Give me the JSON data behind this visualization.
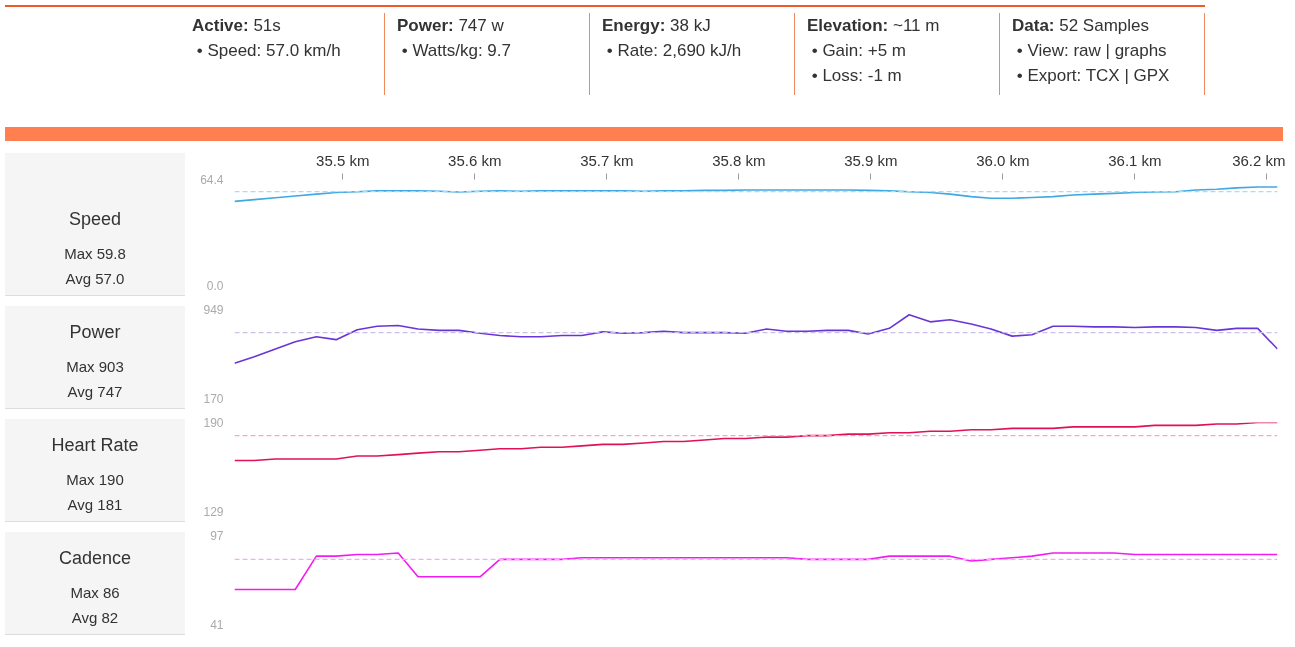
{
  "chart_data": [
    {
      "type": "other",
      "annotations": [
        "Active: 51s",
        "• Speed: 57.0 km/h",
        "Power: 747 w",
        "• Watts/kg: 9.7",
        "Energy: 38 kJ",
        "• Rate: 2,690 kJ/h",
        "Elevation: ~11 m",
        "• Gain: +5 m",
        "• Loss: -1 m",
        "Data: 52 Samples",
        "• View: raw | graphs",
        "• Export: TCX | GPX"
      ]
    },
    {
      "type": "line",
      "title": "Speed",
      "annotations": [
        "Max 59.8",
        "Avg 57.0"
      ],
      "xlim": [
        35.418,
        36.208
      ],
      "ylim": [
        0,
        64.4
      ],
      "yticks": [
        {
          "value": 0,
          "label": "0.0"
        },
        {
          "value": 64.4,
          "label": "64.4"
        }
      ],
      "xticks": [
        {
          "value": 35.5,
          "label": "35.5 km"
        },
        {
          "value": 35.6,
          "label": "35.6 km"
        },
        {
          "value": 35.7,
          "label": "35.7 km"
        },
        {
          "value": 35.8,
          "label": "35.8 km"
        },
        {
          "value": 35.9,
          "label": "35.9 km"
        },
        {
          "value": 36.0,
          "label": "36.0 km"
        },
        {
          "value": 36.1,
          "label": "36.1 km"
        },
        {
          "value": 36.2,
          "label": "36.2 km"
        }
      ],
      "ref_lines": [
        {
          "axis": "y",
          "value": 57.0,
          "color": "#a9dcf5",
          "line_style": "dashed"
        }
      ],
      "x": [
        35.418,
        35.433,
        35.449,
        35.464,
        35.48,
        35.495,
        35.511,
        35.526,
        35.542,
        35.557,
        35.573,
        35.588,
        35.604,
        35.619,
        35.635,
        35.65,
        35.666,
        35.681,
        35.697,
        35.712,
        35.728,
        35.743,
        35.758,
        35.774,
        35.789,
        35.805,
        35.821,
        35.836,
        35.852,
        35.867,
        35.883,
        35.898,
        35.914,
        35.929,
        35.945,
        35.96,
        35.976,
        35.991,
        36.007,
        36.022,
        36.038,
        36.053,
        36.069,
        36.084,
        36.1,
        36.115,
        36.131,
        36.146,
        36.162,
        36.177,
        36.193,
        36.208
      ],
      "series": [
        {
          "color": "#3ea9e2",
          "values": [
            51.1,
            52.2,
            53.3,
            54.4,
            55.5,
            56.5,
            57.0,
            57.5,
            57.5,
            57.5,
            57.3,
            56.8,
            57.3,
            57.5,
            57.3,
            57.5,
            57.5,
            57.5,
            57.5,
            57.5,
            57.3,
            57.5,
            57.5,
            57.8,
            57.8,
            58.0,
            58.0,
            58.0,
            58.0,
            58.0,
            58.0,
            57.8,
            57.5,
            57.0,
            56.5,
            55.5,
            54.0,
            53.0,
            53.0,
            53.5,
            54.0,
            55.0,
            55.5,
            56.0,
            56.5,
            56.8,
            57.0,
            58.0,
            58.5,
            59.3,
            59.8,
            59.8
          ]
        }
      ]
    },
    {
      "type": "line",
      "title": "Power",
      "annotations": [
        "Max 903",
        "Avg 747"
      ],
      "xlim": [
        35.418,
        36.208
      ],
      "ylim": [
        170,
        949
      ],
      "yticks": [
        170,
        949
      ],
      "tick_labels": "y",
      "ref_lines": [
        {
          "axis": "y",
          "value": 747,
          "color": "#cbc0ea",
          "line_style": "dashed"
        }
      ],
      "x": [
        35.418,
        35.433,
        35.449,
        35.464,
        35.48,
        35.495,
        35.511,
        35.526,
        35.542,
        35.557,
        35.573,
        35.588,
        35.604,
        35.619,
        35.635,
        35.65,
        35.666,
        35.681,
        35.697,
        35.712,
        35.728,
        35.743,
        35.758,
        35.774,
        35.789,
        35.805,
        35.821,
        35.836,
        35.852,
        35.867,
        35.883,
        35.898,
        35.914,
        35.929,
        35.945,
        35.96,
        35.976,
        35.991,
        36.007,
        36.022,
        36.038,
        36.053,
        36.069,
        36.084,
        36.1,
        36.115,
        36.131,
        36.146,
        36.162,
        36.177,
        36.193,
        36.208
      ],
      "series": [
        {
          "color": "#6a35d6",
          "values": [
            479,
            535,
            603,
            666,
            710,
            685,
            772,
            803,
            809,
            778,
            766,
            766,
            741,
            722,
            710,
            710,
            722,
            722,
            753,
            741,
            747,
            759,
            747,
            747,
            747,
            741,
            778,
            759,
            759,
            766,
            766,
            735,
            784,
            903,
            841,
            859,
            822,
            778,
            716,
            728,
            803,
            803,
            797,
            797,
            791,
            797,
            797,
            791,
            766,
            784,
            784,
            603
          ]
        }
      ]
    },
    {
      "type": "line",
      "title": "Heart Rate",
      "annotations": [
        "Max 190",
        "Avg 181"
      ],
      "xlim": [
        35.418,
        36.208
      ],
      "ylim": [
        129,
        190
      ],
      "yticks": [
        129,
        190
      ],
      "tick_labels": "y",
      "ref_lines": [
        {
          "axis": "y",
          "value": 181,
          "color": "#f6a8c0",
          "line_style": "dashed"
        }
      ],
      "x": [
        35.418,
        35.433,
        35.449,
        35.464,
        35.48,
        35.495,
        35.511,
        35.526,
        35.542,
        35.557,
        35.573,
        35.588,
        35.604,
        35.619,
        35.635,
        35.65,
        35.666,
        35.681,
        35.697,
        35.712,
        35.728,
        35.743,
        35.758,
        35.774,
        35.789,
        35.805,
        35.821,
        35.836,
        35.852,
        35.867,
        35.883,
        35.898,
        35.914,
        35.929,
        35.945,
        35.96,
        35.976,
        35.991,
        36.007,
        36.022,
        36.038,
        36.053,
        36.069,
        36.084,
        36.1,
        36.115,
        36.131,
        36.146,
        36.162,
        36.177,
        36.193,
        36.208
      ],
      "series": [
        {
          "color": "#e0115a",
          "values": [
            164,
            164,
            165,
            165,
            165,
            165,
            167,
            167,
            168,
            169,
            170,
            170,
            171,
            172,
            172,
            173,
            173,
            174,
            175,
            175,
            176,
            177,
            177,
            178,
            179,
            179,
            180,
            180,
            181,
            181,
            182,
            182,
            183,
            183,
            184,
            184,
            185,
            185,
            186,
            186,
            186,
            187,
            187,
            187,
            187,
            188,
            188,
            188,
            189,
            189,
            190,
            190
          ]
        }
      ]
    },
    {
      "type": "line",
      "title": "Cadence",
      "annotations": [
        "Max 86",
        "Avg 82"
      ],
      "xlim": [
        35.418,
        36.208
      ],
      "ylim": [
        41,
        97
      ],
      "yticks": [
        41,
        97
      ],
      "tick_labels": "y",
      "ref_lines": [
        {
          "axis": "y",
          "value": 82,
          "color": "#f8a8f8",
          "line_style": "dashed"
        }
      ],
      "x": [
        35.418,
        35.433,
        35.449,
        35.464,
        35.48,
        35.495,
        35.511,
        35.526,
        35.542,
        35.557,
        35.573,
        35.588,
        35.604,
        35.619,
        35.635,
        35.65,
        35.666,
        35.681,
        35.697,
        35.712,
        35.728,
        35.743,
        35.758,
        35.774,
        35.789,
        35.805,
        35.821,
        35.836,
        35.852,
        35.867,
        35.883,
        35.898,
        35.914,
        35.929,
        35.945,
        35.96,
        35.976,
        35.991,
        36.007,
        36.022,
        36.038,
        36.053,
        36.069,
        36.084,
        36.1,
        36.115,
        36.131,
        36.146,
        36.162,
        36.177,
        36.193,
        36.208
      ],
      "series": [
        {
          "color": "#f21cf2",
          "values": [
            63,
            63,
            63,
            63,
            84,
            84,
            85,
            85,
            86,
            71,
            71,
            71,
            71,
            82,
            82,
            82,
            82,
            83,
            83,
            83,
            83,
            83,
            83,
            83,
            83,
            83,
            83,
            83,
            82,
            82,
            82,
            82,
            84,
            84,
            84,
            84,
            81,
            82,
            83,
            84,
            86,
            86,
            86,
            86,
            85,
            85,
            85,
            85,
            85,
            85,
            85,
            85
          ]
        }
      ]
    }
  ]
}
